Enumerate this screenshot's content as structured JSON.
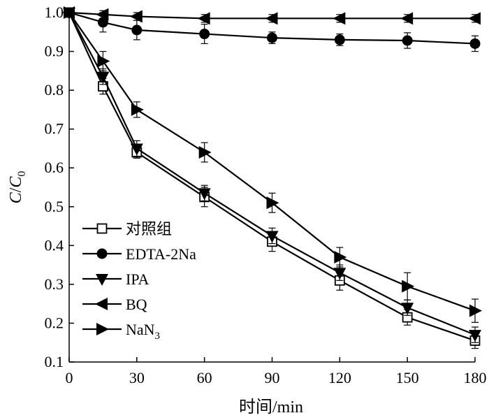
{
  "chart_data": {
    "type": "line",
    "xlabel": "时间/min",
    "ylabel_main": "C",
    "ylabel_sep": "/",
    "ylabel_denom": "C",
    "ylabel_sub": "0",
    "xlim": [
      0,
      180
    ],
    "ylim": [
      0.1,
      1.0
    ],
    "xticks": [
      "0",
      "30",
      "60",
      "90",
      "120",
      "150",
      "180"
    ],
    "yticks": [
      "0.1",
      "0.2",
      "0.3",
      "0.4",
      "0.5",
      "0.6",
      "0.7",
      "0.8",
      "0.9",
      "1.0"
    ],
    "legend_position": "bottom-left",
    "x": [
      0,
      15,
      30,
      60,
      90,
      120,
      150,
      180
    ],
    "series": [
      {
        "name": "对照组",
        "marker": "square-open",
        "values": [
          1.0,
          0.81,
          0.64,
          0.525,
          0.41,
          0.31,
          0.215,
          0.155
        ],
        "errors": [
          0.01,
          0.02,
          0.015,
          0.025,
          0.025,
          0.025,
          0.02,
          0.02
        ]
      },
      {
        "name": "EDTA-2Na",
        "marker": "circle-filled",
        "values": [
          1.0,
          0.975,
          0.955,
          0.945,
          0.935,
          0.93,
          0.928,
          0.92
        ],
        "errors": [
          0.01,
          0.025,
          0.025,
          0.025,
          0.015,
          0.015,
          0.02,
          0.02
        ]
      },
      {
        "name": "IPA",
        "marker": "triangle-down",
        "values": [
          1.0,
          0.835,
          0.65,
          0.535,
          0.425,
          0.33,
          0.24,
          0.17
        ],
        "errors": [
          0.01,
          0.02,
          0.02,
          0.02,
          0.02,
          0.02,
          0.02,
          0.02
        ]
      },
      {
        "name": "BQ",
        "marker": "triangle-left",
        "values": [
          1.0,
          0.995,
          0.99,
          0.985,
          0.985,
          0.985,
          0.985,
          0.985
        ],
        "errors": [
          0.01,
          0.01,
          0.01,
          0.01,
          0.01,
          0.01,
          0.01,
          0.01
        ]
      },
      {
        "name": "NaN",
        "name_sub": "3",
        "marker": "triangle-right",
        "values": [
          1.0,
          0.875,
          0.75,
          0.64,
          0.51,
          0.37,
          0.295,
          0.232
        ],
        "errors": [
          0.01,
          0.025,
          0.02,
          0.025,
          0.025,
          0.025,
          0.035,
          0.03
        ]
      }
    ]
  }
}
